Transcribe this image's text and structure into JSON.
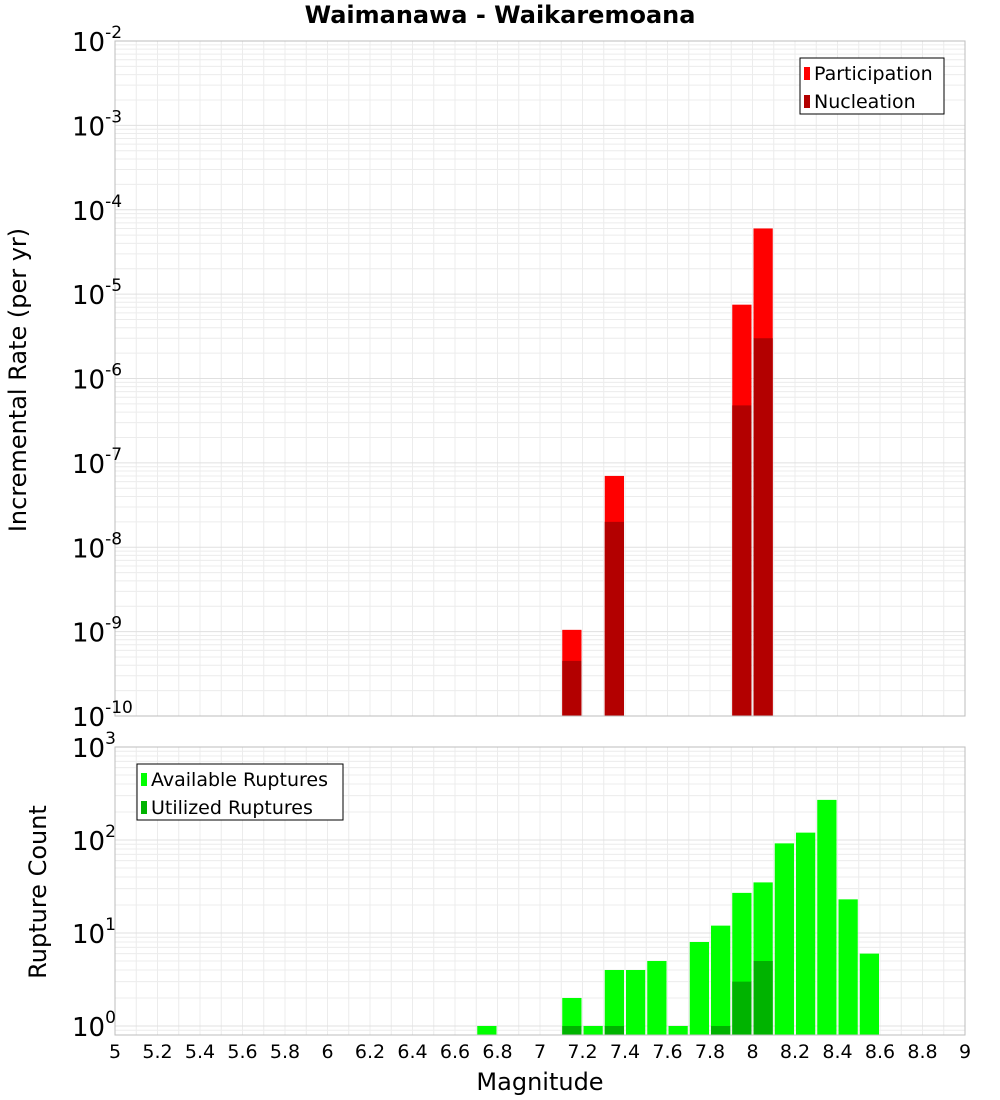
{
  "chart_data": [
    {
      "type": "bar",
      "panel": "top",
      "title": "Waimanawa - Waikaremoana",
      "xlabel": "Magnitude",
      "ylabel": "Incremental Rate (per yr)",
      "yscale": "log",
      "ylim": [
        1e-10,
        0.01
      ],
      "xlim": [
        5,
        9
      ],
      "bin_width": 0.1,
      "grid": true,
      "legend_position": "top-right",
      "series": [
        {
          "name": "Participation",
          "color": "#ff0000",
          "points": [
            {
              "x": 7.15,
              "y": 1.05e-09
            },
            {
              "x": 7.35,
              "y": 7e-08
            },
            {
              "x": 7.95,
              "y": 7.5e-06
            },
            {
              "x": 8.05,
              "y": 6e-05
            }
          ]
        },
        {
          "name": "Nucleation",
          "color": "#b30000",
          "points": [
            {
              "x": 7.15,
              "y": 4.5e-10
            },
            {
              "x": 7.35,
              "y": 2e-08
            },
            {
              "x": 7.95,
              "y": 4.8e-07
            },
            {
              "x": 8.05,
              "y": 3e-06
            }
          ]
        }
      ]
    },
    {
      "type": "bar",
      "panel": "bottom",
      "xlabel": "Magnitude",
      "ylabel": "Rupture Count",
      "yscale": "log",
      "ylim": [
        0.8,
        1000
      ],
      "xlim": [
        5,
        9
      ],
      "bin_width": 0.1,
      "grid": true,
      "legend_position": "top-left",
      "series": [
        {
          "name": "Available Ruptures",
          "color": "#00ff00",
          "points": [
            {
              "x": 6.75,
              "y": 1
            },
            {
              "x": 7.15,
              "y": 2
            },
            {
              "x": 7.25,
              "y": 1
            },
            {
              "x": 7.35,
              "y": 4
            },
            {
              "x": 7.45,
              "y": 4
            },
            {
              "x": 7.55,
              "y": 5
            },
            {
              "x": 7.65,
              "y": 1
            },
            {
              "x": 7.75,
              "y": 8
            },
            {
              "x": 7.85,
              "y": 12
            },
            {
              "x": 7.95,
              "y": 27
            },
            {
              "x": 8.05,
              "y": 35
            },
            {
              "x": 8.15,
              "y": 92
            },
            {
              "x": 8.25,
              "y": 120
            },
            {
              "x": 8.35,
              "y": 270
            },
            {
              "x": 8.45,
              "y": 23
            },
            {
              "x": 8.55,
              "y": 6
            }
          ]
        },
        {
          "name": "Utilized Ruptures",
          "color": "#00b300",
          "points": [
            {
              "x": 7.15,
              "y": 1
            },
            {
              "x": 7.35,
              "y": 1
            },
            {
              "x": 7.85,
              "y": 1
            },
            {
              "x": 7.95,
              "y": 3
            },
            {
              "x": 8.05,
              "y": 5
            }
          ]
        }
      ]
    }
  ],
  "x_ticks": [
    "5",
    "5.2",
    "5.4",
    "5.6",
    "5.8",
    "6",
    "6.2",
    "6.4",
    "6.6",
    "6.8",
    "7",
    "7.2",
    "7.4",
    "7.6",
    "7.8",
    "8",
    "8.2",
    "8.4",
    "8.6",
    "8.8",
    "9"
  ],
  "top_y_ticks": [
    {
      "base": "10",
      "exp": "-10"
    },
    {
      "base": "10",
      "exp": "-9"
    },
    {
      "base": "10",
      "exp": "-8"
    },
    {
      "base": "10",
      "exp": "-7"
    },
    {
      "base": "10",
      "exp": "-6"
    },
    {
      "base": "10",
      "exp": "-5"
    },
    {
      "base": "10",
      "exp": "-4"
    },
    {
      "base": "10",
      "exp": "-3"
    },
    {
      "base": "10",
      "exp": "-2"
    }
  ],
  "bottom_y_ticks": [
    {
      "base": "10",
      "exp": "0"
    },
    {
      "base": "10",
      "exp": "1"
    },
    {
      "base": "10",
      "exp": "2"
    },
    {
      "base": "10",
      "exp": "3"
    }
  ]
}
